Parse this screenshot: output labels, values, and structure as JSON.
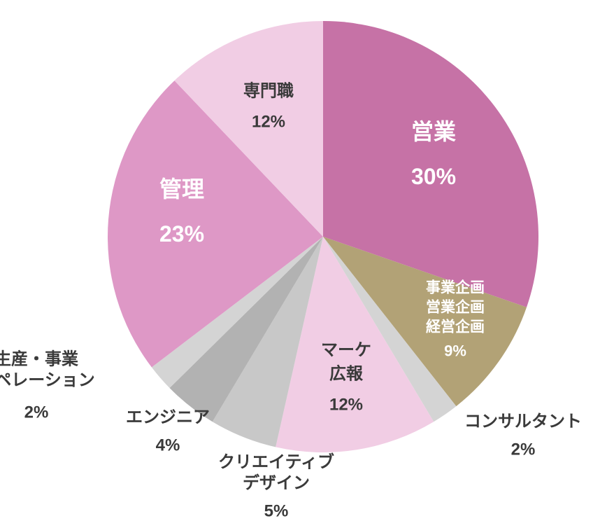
{
  "chart_data": {
    "type": "pie",
    "title": "",
    "start": "12 o'clock, clockwise",
    "slices": [
      {
        "label_lines": [
          "営業"
        ],
        "percent_text": "30%",
        "value": 30,
        "color": "#c672a6",
        "text_color": "#ffffff",
        "label_placement": "inside"
      },
      {
        "label_lines": [
          "事業企画",
          "営業企画",
          "経営企画"
        ],
        "percent_text": "9%",
        "value": 9,
        "color": "#b2a276",
        "text_color": "#ffffff",
        "label_placement": "inside"
      },
      {
        "label_lines": [
          "コンサルタント"
        ],
        "percent_text": "2%",
        "value": 2,
        "color": "#d4d4d4",
        "text_color": "#3a3a3a",
        "label_placement": "outside"
      },
      {
        "label_lines": [
          "マーケ",
          "広報"
        ],
        "percent_text": "12%",
        "value": 12,
        "color": "#f1cde4",
        "text_color": "#3a3a3a",
        "label_placement": "inside"
      },
      {
        "label_lines": [
          "クリエイティブ",
          "デザイン"
        ],
        "percent_text": "5%",
        "value": 5,
        "color": "#c8c8c8",
        "text_color": "#3a3a3a",
        "label_placement": "outside"
      },
      {
        "label_lines": [
          "エンジニア"
        ],
        "percent_text": "4%",
        "value": 4,
        "color": "#b2b2b2",
        "text_color": "#3a3a3a",
        "label_placement": "outside"
      },
      {
        "label_lines": [
          "生産・事業",
          "オペレーション"
        ],
        "percent_text": "2%",
        "value": 2,
        "color": "#d4d4d4",
        "text_color": "#3a3a3a",
        "label_placement": "outside"
      },
      {
        "label_lines": [
          "管理"
        ],
        "percent_text": "23%",
        "value": 23,
        "color": "#de98c6",
        "text_color": "#ffffff",
        "label_placement": "inside"
      },
      {
        "label_lines": [
          "専門職"
        ],
        "percent_text": "12%",
        "value": 12,
        "color": "#f1cde4",
        "text_color": "#3a3a3a",
        "label_placement": "inside"
      }
    ]
  }
}
